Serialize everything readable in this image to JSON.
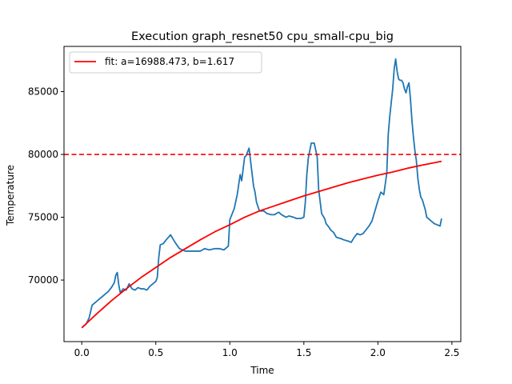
{
  "chart_data": {
    "type": "line",
    "title": "Execution graph_resnet50 cpu_small-cpu_big",
    "xlabel": "Time",
    "ylabel": "Temperature",
    "xlim": [
      -0.12,
      2.56
    ],
    "ylim": [
      65100,
      88600
    ],
    "xticks": [
      0.0,
      0.5,
      1.0,
      1.5,
      2.0,
      2.5
    ],
    "xtick_labels": [
      "0.0",
      "0.5",
      "1.0",
      "1.5",
      "2.0",
      "2.5"
    ],
    "yticks": [
      70000,
      75000,
      80000,
      85000
    ],
    "ytick_labels": [
      "70000",
      "75000",
      "80000",
      "85000"
    ],
    "grid": false,
    "legend": {
      "placement": "top-left",
      "entries": [
        "fit: a=16988.473, b=1.617"
      ]
    },
    "series": [
      {
        "style": "solid",
        "color": "#1f77b4",
        "x": [
          0.0,
          0.03,
          0.05,
          0.07,
          0.09,
          0.1,
          0.12,
          0.15,
          0.18,
          0.2,
          0.22,
          0.23,
          0.24,
          0.25,
          0.26,
          0.28,
          0.3,
          0.32,
          0.34,
          0.36,
          0.38,
          0.4,
          0.42,
          0.44,
          0.46,
          0.48,
          0.5,
          0.51,
          0.52,
          0.53,
          0.55,
          0.57,
          0.6,
          0.63,
          0.66,
          0.7,
          0.75,
          0.8,
          0.83,
          0.86,
          0.9,
          0.93,
          0.96,
          0.99,
          1.0,
          1.03,
          1.05,
          1.07,
          1.08,
          1.1,
          1.11,
          1.13,
          1.15,
          1.16,
          1.17,
          1.18,
          1.2,
          1.23,
          1.25,
          1.28,
          1.3,
          1.33,
          1.35,
          1.38,
          1.4,
          1.43,
          1.45,
          1.48,
          1.5,
          1.51,
          1.52,
          1.53,
          1.55,
          1.57,
          1.59,
          1.6,
          1.62,
          1.64,
          1.65,
          1.67,
          1.68,
          1.7,
          1.72,
          1.75,
          1.77,
          1.8,
          1.82,
          1.84,
          1.86,
          1.88,
          1.9,
          1.92,
          1.94,
          1.96,
          1.98,
          2.0,
          2.02,
          2.04,
          2.06,
          2.07,
          2.08,
          2.09,
          2.1,
          2.11,
          2.12,
          2.13,
          2.14,
          2.15,
          2.16,
          2.17,
          2.18,
          2.19,
          2.2,
          2.21,
          2.22,
          2.23,
          2.24,
          2.25,
          2.26,
          2.27,
          2.28,
          2.29,
          2.3,
          2.31,
          2.32,
          2.33,
          2.34,
          2.35,
          2.36,
          2.37,
          2.38,
          2.4,
          2.42,
          2.43
        ],
        "y": [
          66200,
          66500,
          67000,
          68000,
          68200,
          68300,
          68500,
          68800,
          69100,
          69400,
          69800,
          70400,
          70600,
          69600,
          69000,
          69300,
          69200,
          69700,
          69300,
          69200,
          69400,
          69300,
          69300,
          69200,
          69500,
          69700,
          69900,
          70200,
          71800,
          72800,
          72900,
          73200,
          73600,
          73000,
          72500,
          72300,
          72300,
          72300,
          72500,
          72400,
          72500,
          72500,
          72400,
          72700,
          74800,
          75700,
          76800,
          78400,
          77900,
          79800,
          79900,
          80500,
          78500,
          77500,
          77000,
          76200,
          75500,
          75500,
          75300,
          75200,
          75200,
          75400,
          75200,
          75000,
          75100,
          75000,
          74900,
          74900,
          75000,
          76200,
          78400,
          79700,
          80900,
          80900,
          79800,
          77200,
          75300,
          74900,
          74500,
          74200,
          74000,
          73800,
          73400,
          73300,
          73200,
          73100,
          73000,
          73400,
          73700,
          73600,
          73700,
          74000,
          74300,
          74700,
          75500,
          76300,
          77000,
          76800,
          78500,
          81600,
          83000,
          84100,
          85200,
          86800,
          87600,
          86600,
          86000,
          85900,
          85900,
          85700,
          85200,
          84900,
          85400,
          85700,
          84400,
          82700,
          81400,
          80300,
          79500,
          78100,
          77200,
          76600,
          76400,
          76000,
          75600,
          75000,
          74900,
          74800,
          74700,
          74600,
          74500,
          74400,
          74300,
          74900
        ]
      },
      {
        "name": "fit: a=16988.473, b=1.617",
        "style": "solid",
        "color": "#ff0000",
        "x": [
          0.0,
          0.1,
          0.2,
          0.3,
          0.4,
          0.5,
          0.6,
          0.7,
          0.8,
          0.9,
          1.0,
          1.1,
          1.2,
          1.3,
          1.4,
          1.5,
          1.6,
          1.7,
          1.8,
          1.9,
          2.0,
          2.1,
          2.2,
          2.3,
          2.43
        ],
        "y": [
          66200,
          67300,
          68350,
          69300,
          70200,
          71000,
          71800,
          72500,
          73200,
          73850,
          74400,
          75000,
          75500,
          75900,
          76300,
          76700,
          77050,
          77400,
          77750,
          78050,
          78350,
          78600,
          78900,
          79150,
          79450
        ]
      },
      {
        "style": "dashed",
        "color": "#ff0000",
        "type": "hline",
        "y": 80000
      }
    ]
  }
}
